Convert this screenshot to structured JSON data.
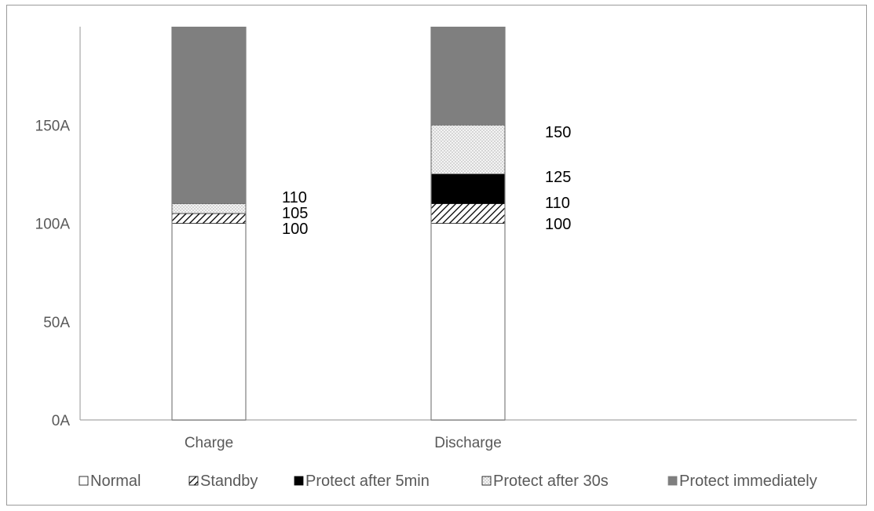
{
  "chart_data": {
    "type": "bar",
    "stacked": true,
    "categories": [
      "Charge",
      "Discharge"
    ],
    "series": [
      {
        "name": "Normal",
        "values": [
          100,
          100
        ]
      },
      {
        "name": "Standby",
        "values": [
          5,
          10
        ]
      },
      {
        "name": "Protect after 5min",
        "values": [
          0,
          15
        ]
      },
      {
        "name": "Protect after 30s",
        "values": [
          5,
          25
        ]
      },
      {
        "name": "Protect immediately",
        "values": [
          90,
          50
        ]
      }
    ],
    "threshold_labels": [
      [
        "110",
        "105",
        "100"
      ],
      [
        "150",
        "125",
        "110",
        "100"
      ]
    ],
    "ytick_labels": [
      "0A",
      "50A",
      "100A",
      "150A"
    ],
    "ytick_values": [
      0,
      50,
      100,
      150
    ],
    "ylim": [
      0,
      200
    ],
    "grid": false,
    "legend_position": "bottom",
    "colors": {
      "Normal": "#ffffff",
      "Standby": "#ffffff",
      "Protect after 5min": "#000000",
      "Protect after 30s": "#f2f2f2",
      "Protect immediately": "#808080",
      "axis": "#a6a6a6",
      "bar_outline": "#7f7f7f"
    }
  }
}
